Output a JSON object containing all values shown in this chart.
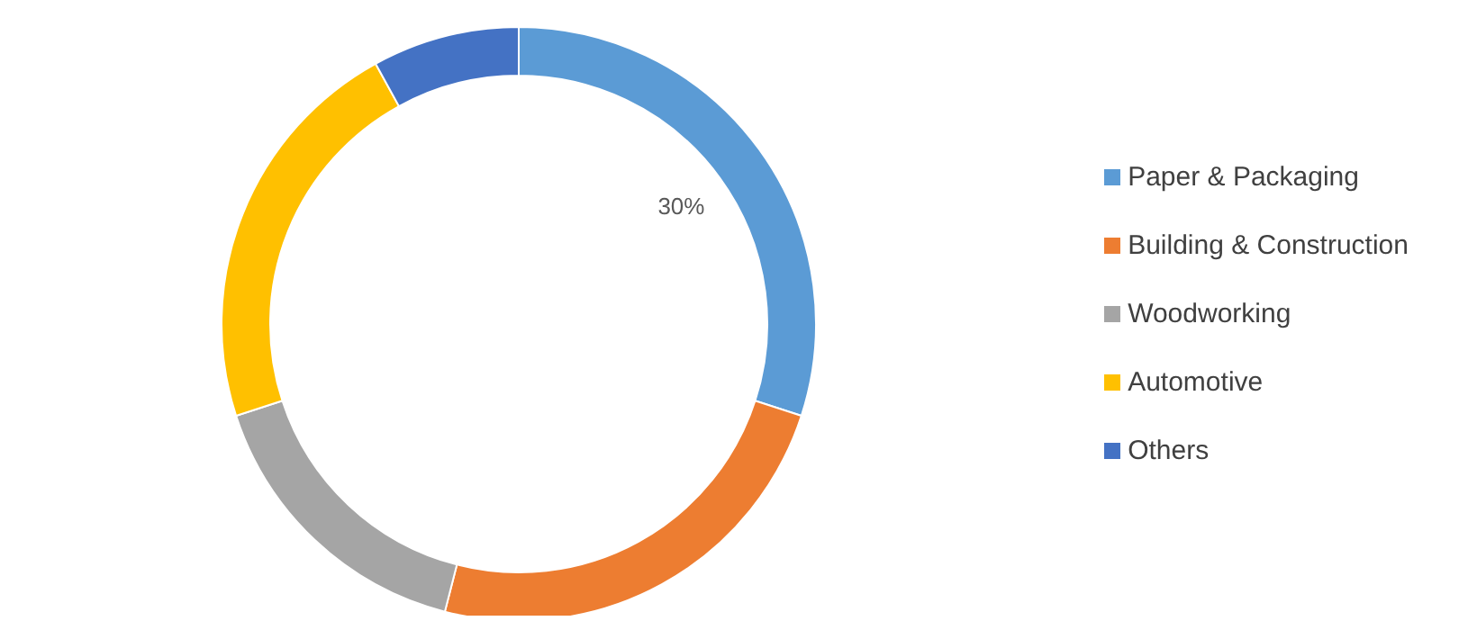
{
  "chart_data": {
    "type": "donut",
    "categories": [
      "Paper & Packaging",
      "Building & Construction",
      "Woodworking",
      "Automotive",
      "Others"
    ],
    "values": [
      30,
      24,
      16,
      22,
      8
    ],
    "colors": [
      "#5b9bd5",
      "#ed7d31",
      "#a5a5a5",
      "#ffc000",
      "#4472c4"
    ],
    "value_labels": [
      "30%",
      null,
      null,
      null,
      null
    ],
    "legend": "right"
  }
}
